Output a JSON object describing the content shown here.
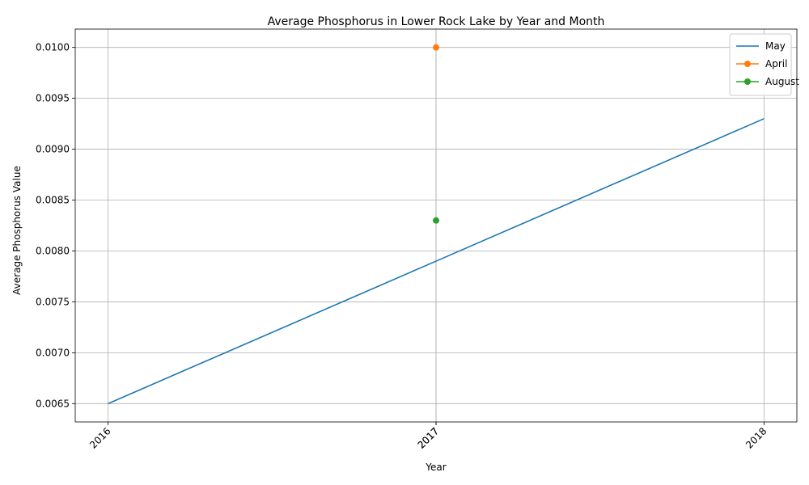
{
  "chart_data": {
    "type": "line",
    "title": "Average Phosphorus in Lower Rock Lake by Year and Month",
    "xlabel": "Year",
    "ylabel": "Average Phosphorus Value",
    "x_ticks": [
      "2016",
      "2017",
      "2017",
      "2018"
    ],
    "y_ticks": [
      "0.0065",
      "0.0070",
      "0.0075",
      "0.0080",
      "0.0085",
      "0.0090",
      "0.0095",
      "0.0100"
    ],
    "xlim": [
      2015.9,
      2018.1
    ],
    "ylim": [
      0.00632,
      0.01018
    ],
    "grid": true,
    "legend_position": "top-right",
    "series": [
      {
        "name": "May",
        "color": "#1f77b4",
        "marker": "none",
        "x": [
          2016,
          2017,
          2018
        ],
        "y": [
          0.0065,
          0.0079,
          0.0093
        ]
      },
      {
        "name": "April",
        "color": "#ff7f0e",
        "marker": "circle",
        "x": [
          2017
        ],
        "y": [
          0.01
        ]
      },
      {
        "name": "August",
        "color": "#2ca02c",
        "marker": "circle",
        "x": [
          2017
        ],
        "y": [
          0.0083
        ]
      }
    ]
  }
}
